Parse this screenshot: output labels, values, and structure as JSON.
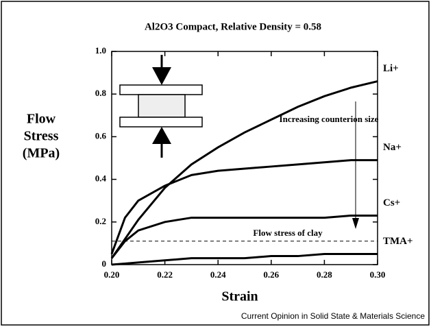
{
  "chart_data": {
    "type": "line",
    "title": "Al2O3 Compact, Relative Density = 0.58",
    "x_label": "Strain",
    "y_label": [
      "Flow",
      "Stress",
      "(MPa)"
    ],
    "x": [
      0.2,
      0.205,
      0.21,
      0.22,
      0.23,
      0.24,
      0.25,
      0.26,
      0.27,
      0.28,
      0.29,
      0.3
    ],
    "series": [
      {
        "name": "Li+",
        "color": "#000000",
        "values": [
          0.03,
          0.12,
          0.21,
          0.36,
          0.47,
          0.55,
          0.62,
          0.68,
          0.74,
          0.79,
          0.83,
          0.86
        ]
      },
      {
        "name": "Na+",
        "color": "#000000",
        "values": [
          0.05,
          0.22,
          0.3,
          0.37,
          0.42,
          0.44,
          0.45,
          0.46,
          0.47,
          0.48,
          0.49,
          0.49
        ]
      },
      {
        "name": "Cs+",
        "color": "#000000",
        "values": [
          0.03,
          0.11,
          0.16,
          0.2,
          0.22,
          0.22,
          0.22,
          0.22,
          0.22,
          0.22,
          0.23,
          0.23
        ]
      },
      {
        "name": "TMA+",
        "color": "#000000",
        "values": [
          0,
          0.005,
          0.01,
          0.02,
          0.03,
          0.03,
          0.03,
          0.04,
          0.04,
          0.05,
          0.05,
          0.05
        ]
      }
    ],
    "clay_flow_stress": 0.11,
    "clay_label": "Flow stress of clay",
    "annotation": "Increasing counterion size",
    "source": "Current Opinion in Solid State & Materials Science",
    "xlim": [
      0.2,
      0.3
    ],
    "ylim": [
      0,
      1
    ],
    "xticks": [
      {
        "value": 0.2,
        "label": "0.20"
      },
      {
        "value": 0.22,
        "label": "0.22"
      },
      {
        "value": 0.24,
        "label": "0.24"
      },
      {
        "value": 0.26,
        "label": "0.26"
      },
      {
        "value": 0.28,
        "label": "0.28"
      },
      {
        "value": 0.3,
        "label": "0.30"
      }
    ],
    "yticks": [
      0,
      0.2,
      0.4,
      0.6,
      0.8,
      {
        "value": 1,
        "label": "1.0"
      }
    ]
  }
}
